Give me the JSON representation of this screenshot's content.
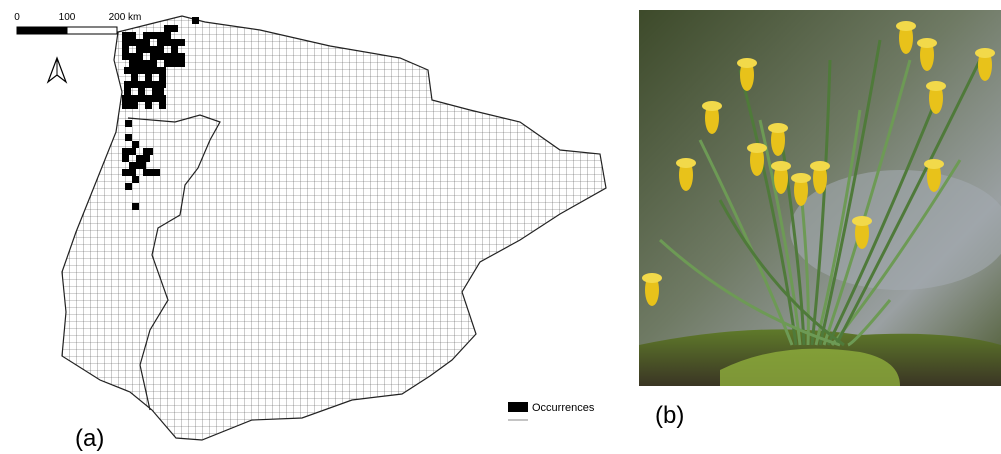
{
  "map": {
    "scale_labels": [
      "0",
      "100",
      "200 km"
    ],
    "legend": "Occurrences",
    "label": "(a)"
  },
  "photo": {
    "label": "(b)"
  }
}
